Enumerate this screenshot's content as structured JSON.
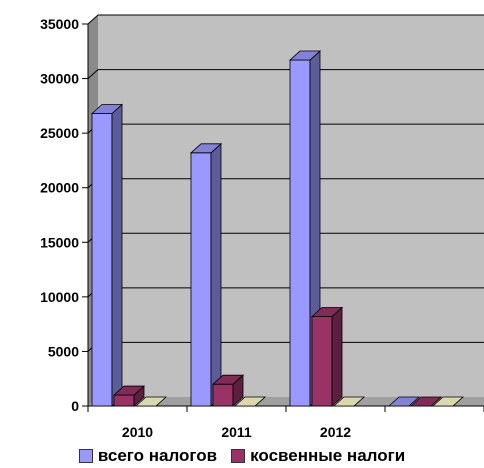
{
  "chart_data": {
    "type": "bar",
    "categories": [
      "2010",
      "2011",
      "2012",
      ""
    ],
    "series": [
      {
        "name": "всего налогов",
        "values": [
          26800,
          23200,
          31700,
          0
        ],
        "color": "#9999ff"
      },
      {
        "name": "косвенные налоги",
        "values": [
          1000,
          2000,
          8200,
          0
        ],
        "color": "#993366"
      },
      {
        "name": "",
        "values": [
          0,
          0,
          0,
          0
        ],
        "color": "#ffffcc"
      }
    ],
    "ylim": [
      0,
      35000
    ],
    "yticks": [
      "0",
      "5000",
      "10000",
      "15000",
      "20000",
      "25000",
      "30000",
      "35000"
    ],
    "grid": true,
    "legend_position": "bottom",
    "colors": {
      "plot_background": "#c0c0c0",
      "wall_left": "#8a8a8a",
      "floor": "#a0a0a0"
    }
  }
}
